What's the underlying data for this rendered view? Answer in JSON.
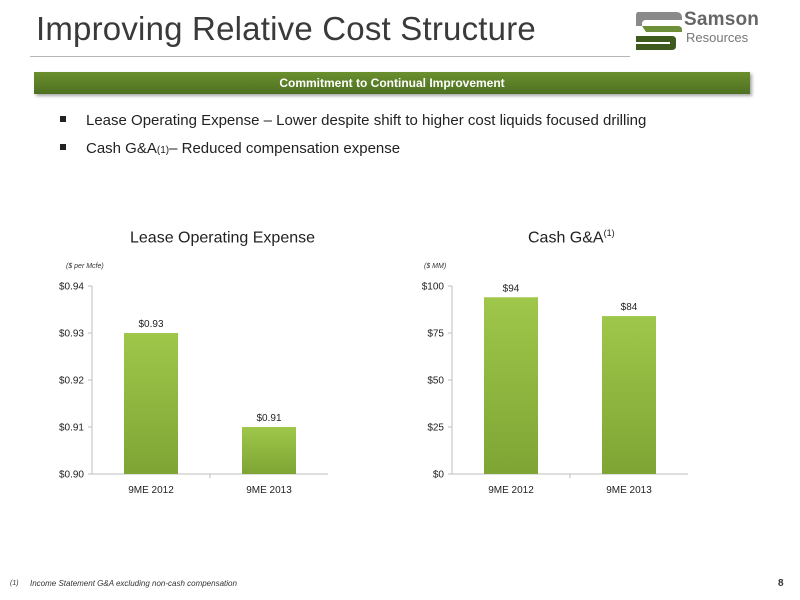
{
  "header": {
    "title": "Improving Relative Cost Structure",
    "logo_name": "Samson",
    "logo_sub": "Resources"
  },
  "banner": {
    "text": "Commitment to Continual Improvement"
  },
  "bullets": [
    {
      "text_before": "Lease Operating Expense – Lower despite shift to higher cost liquids focused drilling",
      "sup": "",
      "text_after": ""
    },
    {
      "text_before": "Cash G&A",
      "sup": "(1)",
      "text_after": " – Reduced compensation expense"
    }
  ],
  "chart_data": [
    {
      "type": "bar",
      "title": "Lease Operating Expense",
      "title_sup": "",
      "unit_label": "($ per Mcfe)",
      "categories": [
        "9ME 2012",
        "9ME 2013"
      ],
      "values": [
        0.93,
        0.91
      ],
      "data_labels": [
        "$0.93",
        "$0.91"
      ],
      "ylim": [
        0.9,
        0.94
      ],
      "yticks": [
        0.9,
        0.91,
        0.92,
        0.93,
        0.94
      ],
      "ytick_labels": [
        "$0.90",
        "$0.91",
        "$0.92",
        "$0.93",
        "$0.94"
      ],
      "bar_color": "#8cb43c"
    },
    {
      "type": "bar",
      "title": "Cash G&A",
      "title_sup": "(1)",
      "unit_label": "($ MM)",
      "categories": [
        "9ME 2012",
        "9ME 2013"
      ],
      "values": [
        94,
        84
      ],
      "data_labels": [
        "$94",
        "$84"
      ],
      "ylim": [
        0,
        100
      ],
      "yticks": [
        0,
        25,
        50,
        75,
        100
      ],
      "ytick_labels": [
        "$0",
        "$25",
        "$50",
        "$75",
        "$100"
      ],
      "bar_color": "#8cb43c"
    }
  ],
  "footer": {
    "footnote_marker": "(1)",
    "footnote_text": "Income Statement G&A excluding non-cash compensation",
    "page_number": "8"
  },
  "colors": {
    "banner_green": "#5a7d26",
    "bar_green": "#8cb43c",
    "logo_dark_green": "#3e5a1c",
    "logo_gray": "#8a8a8a"
  }
}
